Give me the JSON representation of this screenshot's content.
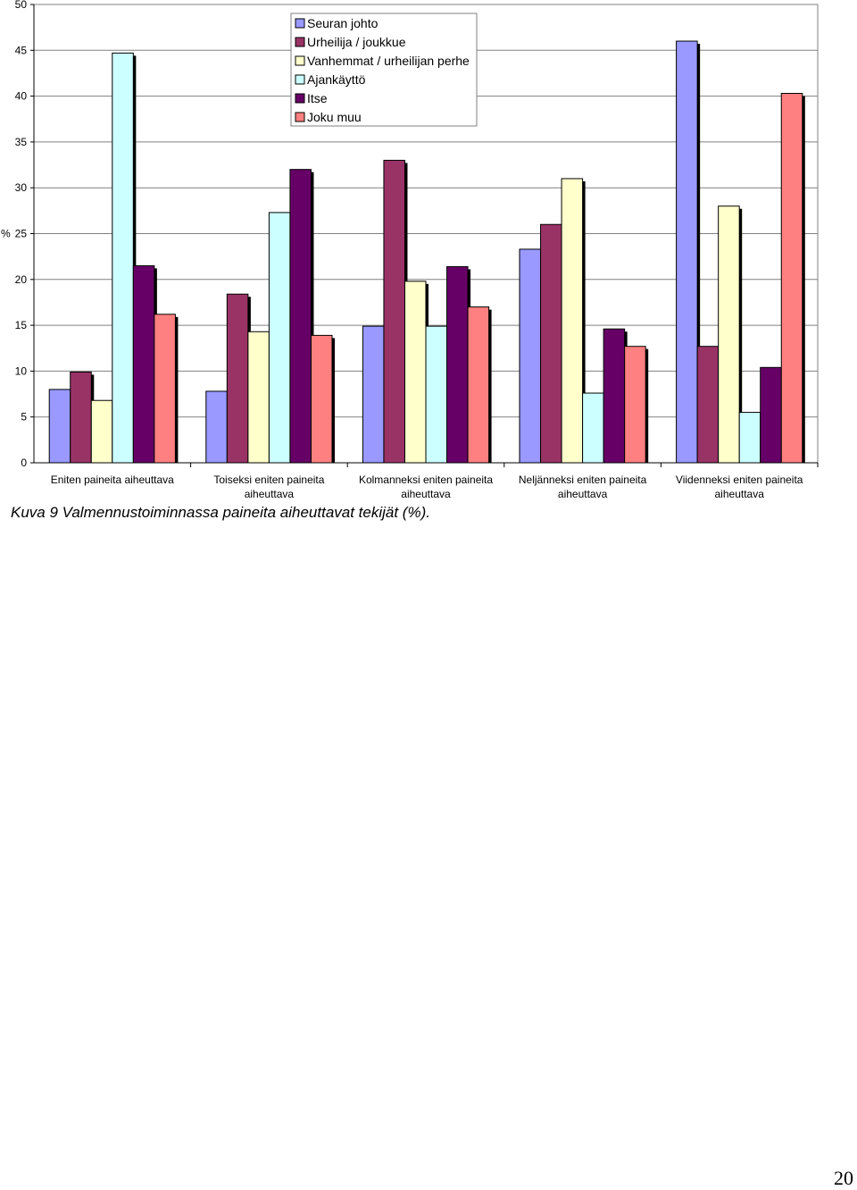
{
  "chart_data": {
    "type": "bar",
    "ylabel": "%",
    "ylim": [
      0,
      50
    ],
    "yticks": [
      "0",
      "5",
      "10",
      "15",
      "20",
      "25",
      "30",
      "35",
      "40",
      "45",
      "50"
    ],
    "grid": true,
    "legend_position": "top-center",
    "categories": [
      [
        "Eniten paineita aiheuttava"
      ],
      [
        "Toiseksi eniten paineita",
        "aiheuttava"
      ],
      [
        "Kolmanneksi eniten paineita",
        "aiheuttava"
      ],
      [
        "Neljänneksi eniten paineita",
        "aiheuttava"
      ],
      [
        "Viidenneksi eniten paineita",
        "aiheuttava"
      ]
    ],
    "series": [
      {
        "name": "Seuran johto",
        "color": "#9999ff",
        "values": [
          8.0,
          7.8,
          14.9,
          23.3,
          46.0
        ]
      },
      {
        "name": "Urheilija / joukkue",
        "color": "#993366",
        "values": [
          9.9,
          18.4,
          33.0,
          26.0,
          12.7
        ]
      },
      {
        "name": "Vanhemmat / urheilijan perhe",
        "color": "#ffffcc",
        "values": [
          6.8,
          14.3,
          19.8,
          31.0,
          28.0
        ]
      },
      {
        "name": "Ajankäyttö",
        "color": "#ccffff",
        "values": [
          44.7,
          27.3,
          14.9,
          7.6,
          5.5
        ]
      },
      {
        "name": "Itse",
        "color": "#660066",
        "values": [
          21.5,
          32.0,
          21.4,
          14.6,
          10.4
        ]
      },
      {
        "name": "Joku muu",
        "color": "#ff8080",
        "values": [
          16.2,
          13.9,
          17.0,
          12.7,
          40.3
        ]
      }
    ]
  },
  "caption": "Kuva 9 Valmennustoiminnassa paineita aiheuttavat tekijät (%).",
  "page_number": "20"
}
